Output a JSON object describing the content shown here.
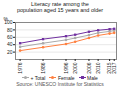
{
  "chart_data": {
    "type": "line",
    "title": "Literacy rate among the\npopulation aged 15 years and older",
    "x": [
      1976,
      1986,
      1996,
      2000,
      2006,
      2010,
      2015,
      2017
    ],
    "series": [
      {
        "name": "+ Total",
        "color": "#aaaaaa",
        "marker": "circle",
        "values": [
          34,
          44,
          53,
          58,
          66,
          72,
          76,
          78
        ]
      },
      {
        "name": "Female",
        "color": "#ff8040",
        "marker": "circle",
        "values": [
          24,
          33,
          42,
          48,
          58,
          65,
          70,
          72
        ]
      },
      {
        "name": "Male",
        "color": "#7030a0",
        "marker": "square",
        "values": [
          44,
          55,
          63,
          67,
          75,
          79,
          82,
          83
        ]
      }
    ],
    "xlim": [
      1974,
      2018
    ],
    "ylim": [
      0,
      100
    ],
    "xticks": [
      1976,
      1986,
      1996,
      2000,
      2006,
      2010,
      2015,
      2017
    ],
    "yticks": [
      20,
      40,
      60,
      80,
      100
    ],
    "ylabel": "%",
    "grid": true,
    "legend": "bottom",
    "annotations": [
      "Source: UNESCO Institute for Statistics"
    ]
  }
}
